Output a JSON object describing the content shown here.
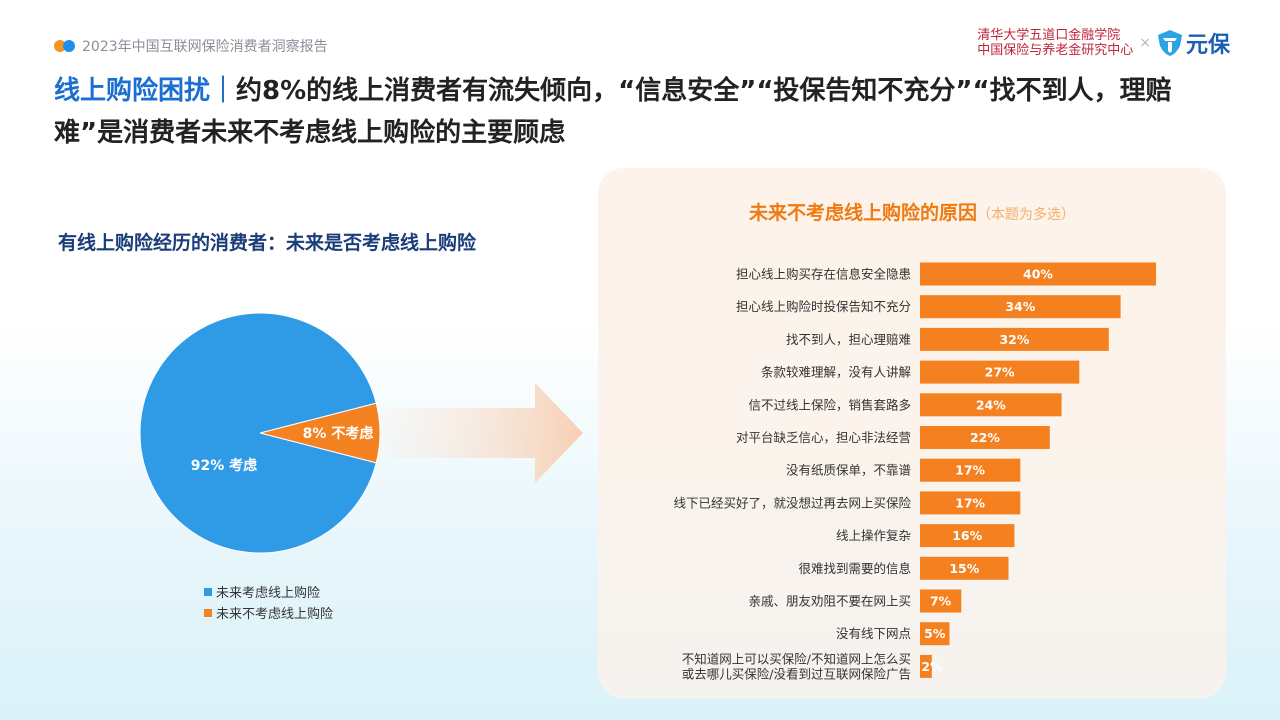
{
  "header": {
    "report_title": "2023年中国互联网保险消费者洞察报告",
    "brand_line1": "清华大学五道口金融学院",
    "brand_line2": "中国保险与养老金研究中心",
    "brand_separator": "×",
    "brand_name": "元保",
    "icon": "shield-logo-icon"
  },
  "headline": {
    "highlight": "线上购险困扰｜",
    "text": "约8%的线上消费者有流失倾向，“信息安全”“投保告知不充分”“找不到人，理赔难”是消费者未来不考虑线上购险的主要顾虑"
  },
  "colors": {
    "blue": "#2f9ae6",
    "orange": "#f58220",
    "bar_orange": "#f5801f",
    "title_orange": "#ef7a12",
    "headline_blue": "#1a6fd1"
  },
  "chart_data": [
    {
      "type": "pie",
      "title": "有线上购险经历的消费者：未来是否考虑线上购险",
      "slices": [
        {
          "label": "92% 考虑",
          "legend": "未来考虑线上购险",
          "value": 92,
          "color": "#2f9ae6"
        },
        {
          "label": "8% 不考虑",
          "legend": "未来不考虑线上购险",
          "value": 8,
          "color": "#f58220"
        }
      ],
      "legend_position": "bottom"
    },
    {
      "type": "bar",
      "orientation": "horizontal",
      "title": "未来不考虑线上购险的原因",
      "note": "（本题为多选）",
      "categories": [
        "担心线上购买存在信息安全隐患",
        "担心线上购险时投保告知不充分",
        "找不到人，担心理赔难",
        "条款较难理解，没有人讲解",
        "信不过线上保险，销售套路多",
        "对平台缺乏信心，担心非法经营",
        "没有纸质保单，不靠谱",
        "线下已经买好了，就没想过再去网上买保险",
        "线上操作复杂",
        "很难找到需要的信息",
        "亲戚、朋友劝阻不要在网上买",
        "没有线下网点",
        "不知道网上可以买保险/不知道网上怎么买\n或去哪儿买保险/没看到过互联网保险广告"
      ],
      "values": [
        40,
        34,
        32,
        27,
        24,
        22,
        17,
        17,
        16,
        15,
        7,
        5,
        2
      ],
      "value_labels": [
        "40%",
        "34%",
        "32%",
        "27%",
        "24%",
        "22%",
        "17%",
        "17%",
        "16%",
        "15%",
        "7%",
        "5%",
        "2%"
      ],
      "grid": false
    }
  ]
}
